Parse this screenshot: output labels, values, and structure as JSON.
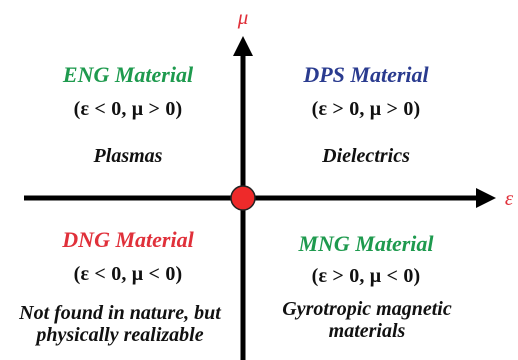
{
  "colors": {
    "eng": "#1e9a4e",
    "dps": "#2a3b8f",
    "dng": "#e0303a",
    "mng": "#1e9a4e",
    "axis_label": "#e0303a",
    "origin_fill": "#ee2a2a",
    "axis": "#000000"
  },
  "axes": {
    "y_label": "μ",
    "x_label": "ε"
  },
  "quadrants": {
    "top_left": {
      "title": "ENG Material",
      "condition": "(ε < 0, μ > 0)",
      "example": "Plasmas"
    },
    "top_right": {
      "title": "DPS Material",
      "condition": "(ε > 0, μ > 0)",
      "example": "Dielectrics"
    },
    "bottom_left": {
      "title": "DNG Material",
      "condition": "(ε  < 0, μ  < 0)",
      "example": "Not found in nature, but physically realizable"
    },
    "bottom_right": {
      "title": "MNG Material",
      "condition": "(ε > 0, μ  < 0)",
      "example": "Gyrotropic magnetic materials"
    }
  }
}
